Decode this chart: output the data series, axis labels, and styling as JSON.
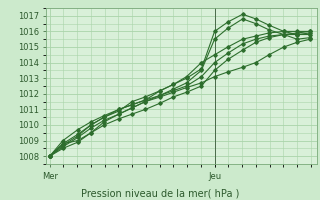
{
  "title": "",
  "xlabel": "Pression niveau de la mer( hPa )",
  "bg_color": "#cceacc",
  "plot_bg_color": "#d9f0d9",
  "grid_color": "#aad4aa",
  "line_color": "#2d6e2d",
  "ylim": [
    1007.5,
    1017.5
  ],
  "yticks": [
    1008,
    1009,
    1010,
    1011,
    1012,
    1013,
    1014,
    1015,
    1016,
    1017
  ],
  "lines": [
    [
      0.0,
      1008.0,
      0.08,
      1008.8,
      0.17,
      1009.0,
      0.25,
      1009.5,
      0.33,
      1010.2,
      0.42,
      1010.7,
      0.5,
      1011.1,
      0.58,
      1011.5,
      0.67,
      1011.8,
      0.75,
      1012.1,
      0.83,
      1012.4,
      0.92,
      1012.7,
      1.0,
      1013.1,
      1.08,
      1013.4,
      1.17,
      1013.7,
      1.25,
      1014.0,
      1.33,
      1014.5,
      1.42,
      1015.0,
      1.5,
      1015.3,
      1.58,
      1015.5
    ],
    [
      0.0,
      1008.0,
      0.08,
      1008.7,
      0.17,
      1009.3,
      0.25,
      1010.0,
      0.33,
      1010.5,
      0.42,
      1011.0,
      0.5,
      1011.3,
      0.58,
      1011.6,
      0.67,
      1012.2,
      0.75,
      1012.6,
      0.83,
      1013.0,
      0.92,
      1013.6,
      1.0,
      1016.0,
      1.08,
      1016.6,
      1.17,
      1017.1,
      1.25,
      1016.8,
      1.33,
      1016.4,
      1.42,
      1016.0,
      1.5,
      1015.8,
      1.58,
      1015.8
    ],
    [
      0.0,
      1008.0,
      0.08,
      1008.5,
      0.17,
      1008.9,
      0.25,
      1009.5,
      0.33,
      1010.0,
      0.42,
      1010.4,
      0.5,
      1010.7,
      0.58,
      1011.0,
      0.67,
      1011.4,
      0.75,
      1011.8,
      0.83,
      1012.1,
      0.92,
      1012.5,
      1.0,
      1013.5,
      1.08,
      1014.2,
      1.17,
      1014.8,
      1.25,
      1015.3,
      1.33,
      1015.6,
      1.42,
      1015.8,
      1.5,
      1015.9,
      1.58,
      1016.0
    ],
    [
      0.0,
      1008.0,
      0.08,
      1009.0,
      0.17,
      1009.7,
      0.25,
      1010.2,
      0.33,
      1010.6,
      0.42,
      1011.0,
      0.5,
      1011.3,
      0.58,
      1011.6,
      0.67,
      1011.9,
      0.75,
      1012.3,
      0.83,
      1012.7,
      0.92,
      1013.5,
      1.0,
      1015.5,
      1.08,
      1016.2,
      1.17,
      1016.8,
      1.25,
      1016.5,
      1.33,
      1016.1,
      1.42,
      1015.8,
      1.5,
      1015.5,
      1.58,
      1015.6
    ],
    [
      0.0,
      1008.0,
      0.08,
      1008.6,
      0.17,
      1009.2,
      0.25,
      1009.8,
      0.33,
      1010.3,
      0.42,
      1010.7,
      0.5,
      1011.1,
      0.58,
      1011.5,
      0.67,
      1011.9,
      0.75,
      1012.2,
      0.83,
      1012.5,
      0.92,
      1013.1,
      1.0,
      1014.0,
      1.08,
      1014.6,
      1.17,
      1015.2,
      1.25,
      1015.5,
      1.33,
      1015.7,
      1.42,
      1015.8,
      1.5,
      1015.8,
      1.58,
      1015.9
    ],
    [
      0.0,
      1008.0,
      0.08,
      1008.8,
      0.17,
      1009.4,
      0.25,
      1010.0,
      0.33,
      1010.5,
      0.42,
      1010.9,
      0.5,
      1011.5,
      0.58,
      1011.8,
      0.67,
      1012.2,
      0.75,
      1012.6,
      0.83,
      1013.1,
      0.92,
      1014.0,
      1.0,
      1014.5,
      1.08,
      1015.0,
      1.17,
      1015.5,
      1.25,
      1015.7,
      1.33,
      1015.9,
      1.42,
      1016.0,
      1.5,
      1016.0,
      1.58,
      1016.0
    ]
  ],
  "xtick_positions": [
    0.0,
    1.0
  ],
  "xtick_labels": [
    "Mer",
    "Jeu"
  ],
  "vline_x": 1.0,
  "marker": "D",
  "marker_size": 1.8,
  "linewidth": 0.8,
  "tick_fontsize": 6.0,
  "xlabel_fontsize": 7.0
}
